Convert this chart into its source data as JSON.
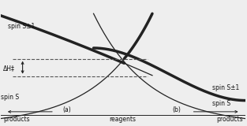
{
  "figsize": [
    3.13,
    1.6
  ],
  "dpi": 100,
  "bg_color": "#eeeeee",
  "curve_color": "#222222",
  "dashed_color": "#555555",
  "text_color": "#111111",
  "label_bottom_left": "products",
  "label_bottom_mid": "reagents",
  "label_bottom_right": "products",
  "label_a": "(a)",
  "label_b": "(b)",
  "label_spin_s_left": "spin S",
  "label_spin_s1_left": "spin S±1",
  "label_spin_s_right": "spin S",
  "label_spin_s1_right": "spin S±1",
  "label_dH": "ΔH‡",
  "lw_thin": 0.9,
  "lw_thick": 2.5
}
